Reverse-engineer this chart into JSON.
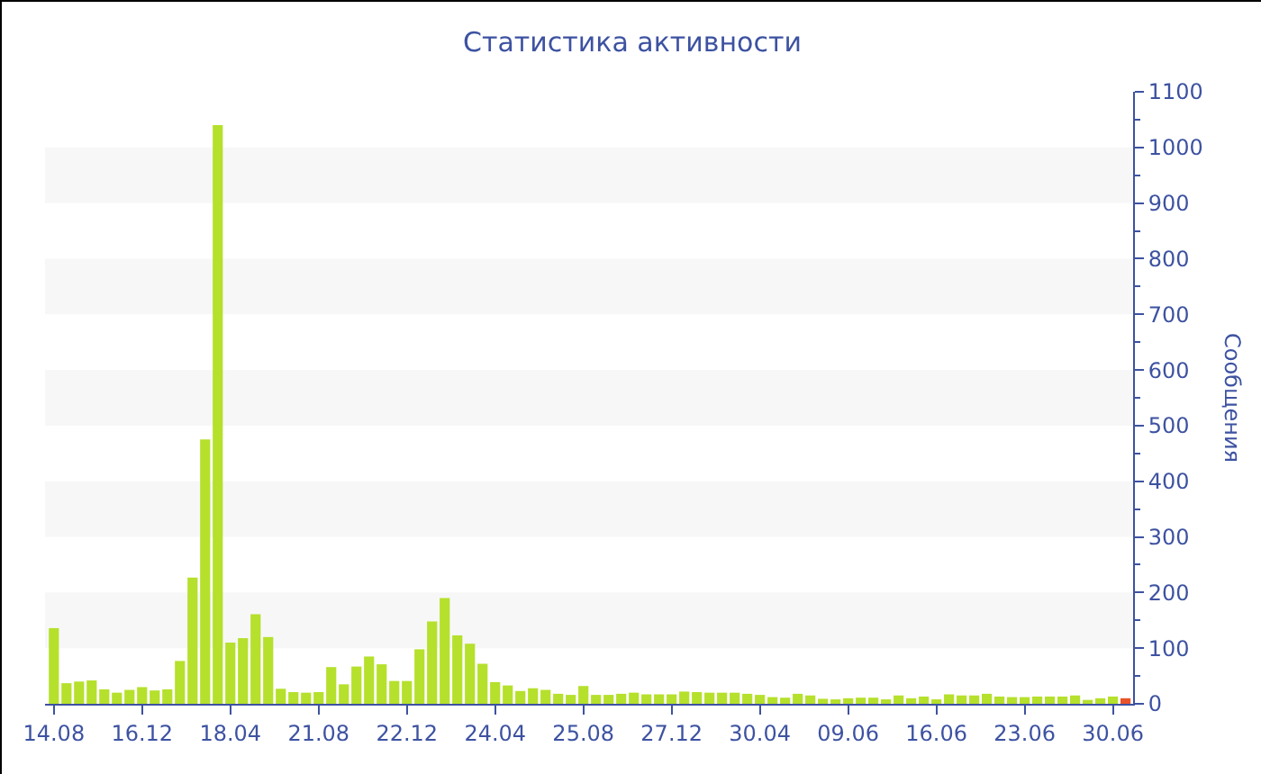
{
  "chart_data": {
    "type": "bar",
    "title": "Статистика активности",
    "ylabel": "Сообщения",
    "categories": [
      "14.08",
      null,
      null,
      null,
      null,
      null,
      null,
      "16.12",
      null,
      null,
      null,
      null,
      null,
      null,
      "18.04",
      null,
      null,
      null,
      null,
      null,
      null,
      "21.08",
      null,
      null,
      null,
      null,
      null,
      null,
      "22.12",
      null,
      null,
      null,
      null,
      null,
      null,
      "24.04",
      null,
      null,
      null,
      null,
      null,
      null,
      "25.08",
      null,
      null,
      null,
      null,
      null,
      null,
      "27.12",
      null,
      null,
      null,
      null,
      null,
      null,
      "30.04",
      null,
      null,
      null,
      null,
      null,
      null,
      "09.06",
      null,
      null,
      null,
      null,
      null,
      null,
      "16.06",
      null,
      null,
      null,
      null,
      null,
      null,
      "23.06",
      null,
      null,
      null,
      null,
      null,
      null,
      "30.06",
      null
    ],
    "values": [
      136,
      37,
      40,
      42,
      26,
      20,
      25,
      30,
      24,
      26,
      77,
      227,
      475,
      1040,
      110,
      118,
      161,
      120,
      27,
      21,
      20,
      21,
      66,
      35,
      67,
      85,
      71,
      41,
      41,
      98,
      148,
      190,
      123,
      108,
      72,
      39,
      33,
      23,
      28,
      25,
      18,
      16,
      32,
      16,
      16,
      18,
      20,
      17,
      17,
      17,
      22,
      21,
      20,
      20,
      20,
      18,
      16,
      12,
      11,
      18,
      15,
      9,
      8,
      10,
      11,
      11,
      8,
      15,
      10,
      13,
      8,
      17,
      15,
      15,
      18,
      13,
      12,
      12,
      13,
      13,
      13,
      15,
      7,
      10,
      13,
      10
    ],
    "colors": [
      "#b5e02c",
      "#b5e02c",
      "#b5e02c",
      "#b5e02c",
      "#b5e02c",
      "#b5e02c",
      "#b5e02c",
      "#b5e02c",
      "#b5e02c",
      "#b5e02c",
      "#b5e02c",
      "#b5e02c",
      "#b5e02c",
      "#b5e02c",
      "#b5e02c",
      "#b5e02c",
      "#b5e02c",
      "#b5e02c",
      "#b5e02c",
      "#b5e02c",
      "#b5e02c",
      "#b5e02c",
      "#b5e02c",
      "#b5e02c",
      "#b5e02c",
      "#b5e02c",
      "#b5e02c",
      "#b5e02c",
      "#b5e02c",
      "#b5e02c",
      "#b5e02c",
      "#b5e02c",
      "#b5e02c",
      "#b5e02c",
      "#b5e02c",
      "#b5e02c",
      "#b5e02c",
      "#b5e02c",
      "#b5e02c",
      "#b5e02c",
      "#b5e02c",
      "#b5e02c",
      "#b5e02c",
      "#b5e02c",
      "#b5e02c",
      "#b5e02c",
      "#b5e02c",
      "#b5e02c",
      "#b5e02c",
      "#b5e02c",
      "#b5e02c",
      "#b5e02c",
      "#b5e02c",
      "#b5e02c",
      "#b5e02c",
      "#b5e02c",
      "#b5e02c",
      "#b5e02c",
      "#b5e02c",
      "#b5e02c",
      "#b5e02c",
      "#b5e02c",
      "#b5e02c",
      "#b5e02c",
      "#b5e02c",
      "#b5e02c",
      "#b5e02c",
      "#b5e02c",
      "#b5e02c",
      "#b5e02c",
      "#b5e02c",
      "#b5e02c",
      "#b5e02c",
      "#b5e02c",
      "#b5e02c",
      "#b5e02c",
      "#b5e02c",
      "#b5e02c",
      "#b5e02c",
      "#b5e02c",
      "#b5e02c",
      "#b5e02c",
      "#b5e02c",
      "#b5e02c",
      "#b5e02c",
      "#e8532a"
    ],
    "ylim": [
      0,
      1100
    ],
    "yticks": [
      0,
      100,
      200,
      300,
      400,
      500,
      600,
      700,
      800,
      900,
      1000,
      1100
    ],
    "bands": [
      {
        "axis": "y",
        "from": 100,
        "to": 200,
        "color": "#f7f7f7"
      },
      {
        "axis": "y",
        "from": 300,
        "to": 400,
        "color": "#f7f7f7"
      },
      {
        "axis": "y",
        "from": 500,
        "to": 600,
        "color": "#f7f7f7"
      },
      {
        "axis": "y",
        "from": 700,
        "to": 800,
        "color": "#f7f7f7"
      },
      {
        "axis": "y",
        "from": 900,
        "to": 1000,
        "color": "#f7f7f7"
      }
    ]
  }
}
